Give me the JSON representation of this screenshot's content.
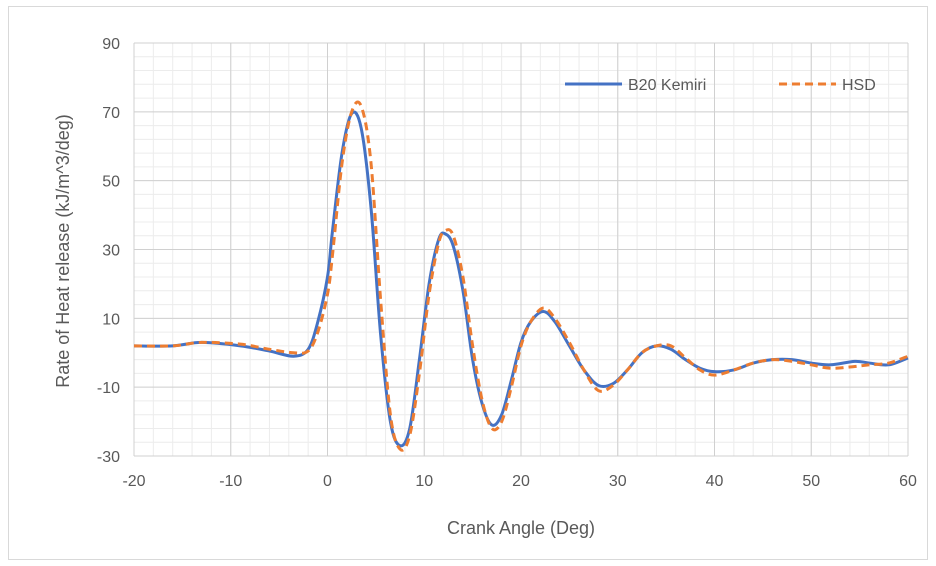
{
  "chart_data": {
    "type": "line",
    "title": "",
    "xlabel": "Crank Angle (Deg)",
    "ylabel": "Rate of Heat release (kJ/m^3/deg)",
    "xlim": [
      -20,
      60
    ],
    "ylim": [
      -30,
      90
    ],
    "xticks": [
      -20,
      -10,
      0,
      10,
      20,
      30,
      40,
      50,
      60
    ],
    "yticks": [
      -30,
      -10,
      10,
      30,
      50,
      70,
      90
    ],
    "grid": true,
    "legend_position": "top-right",
    "series": [
      {
        "name": "B20 Kemiri",
        "color": "#4472C4",
        "style": "solid",
        "x": [
          -20,
          -16,
          -13,
          -9,
          -6,
          -3.5,
          -2,
          -1,
          0,
          0.5,
          1.5,
          2.5,
          3.5,
          4.5,
          5.5,
          6.5,
          7.5,
          8.5,
          9.5,
          10.5,
          11.5,
          12.2,
          13,
          14,
          15,
          16,
          17,
          18,
          19,
          20,
          21,
          22.3,
          23.5,
          25,
          26.5,
          28,
          29.5,
          31,
          32.5,
          34,
          35.5,
          37,
          38.5,
          40,
          42,
          44,
          46,
          48,
          50,
          52,
          54.5,
          56,
          58,
          60
        ],
        "y": [
          2,
          2,
          3,
          2,
          0.5,
          -1,
          1,
          9,
          22,
          35,
          58,
          69.5,
          65,
          42,
          5,
          -20,
          -27,
          -22,
          -2,
          20,
          33,
          34.5,
          31,
          18,
          -2,
          -15,
          -21,
          -18,
          -8,
          3,
          9,
          12,
          9,
          2,
          -5,
          -9.5,
          -9,
          -5,
          0,
          2,
          1,
          -2,
          -4.5,
          -5.5,
          -5,
          -3,
          -2,
          -2,
          -3,
          -3.5,
          -2.5,
          -3,
          -3.5,
          -1.5
        ]
      },
      {
        "name": "HSD",
        "color": "#ED7D31",
        "style": "dashed",
        "x": [
          -20,
          -16,
          -13,
          -9,
          -6,
          -3.5,
          -2,
          -1,
          0,
          0.5,
          1.5,
          2.5,
          3.5,
          4.5,
          5.5,
          6.5,
          7.5,
          8.5,
          9.5,
          10.5,
          11.5,
          12.2,
          13,
          14,
          15,
          16,
          17,
          18,
          19,
          20,
          21,
          22.3,
          23.5,
          25,
          26.5,
          28,
          29.5,
          31,
          32.5,
          34,
          35.5,
          37,
          38.5,
          40,
          42,
          44,
          46,
          48,
          50,
          52,
          54.5,
          56,
          58,
          60
        ],
        "y": [
          2,
          2,
          3,
          2.5,
          1,
          0,
          0.5,
          6,
          17,
          28,
          55,
          70,
          71.5,
          55,
          15,
          -18,
          -28,
          -24,
          -6,
          17,
          32,
          35.5,
          34,
          22,
          2,
          -14,
          -22,
          -20,
          -10,
          2,
          9,
          13,
          10,
          3,
          -5,
          -11,
          -9.5,
          -5,
          0,
          2,
          2,
          -1.5,
          -5,
          -6.5,
          -5,
          -3,
          -2,
          -2.5,
          -3.5,
          -4.5,
          -4,
          -3.5,
          -3,
          -1
        ]
      }
    ]
  }
}
